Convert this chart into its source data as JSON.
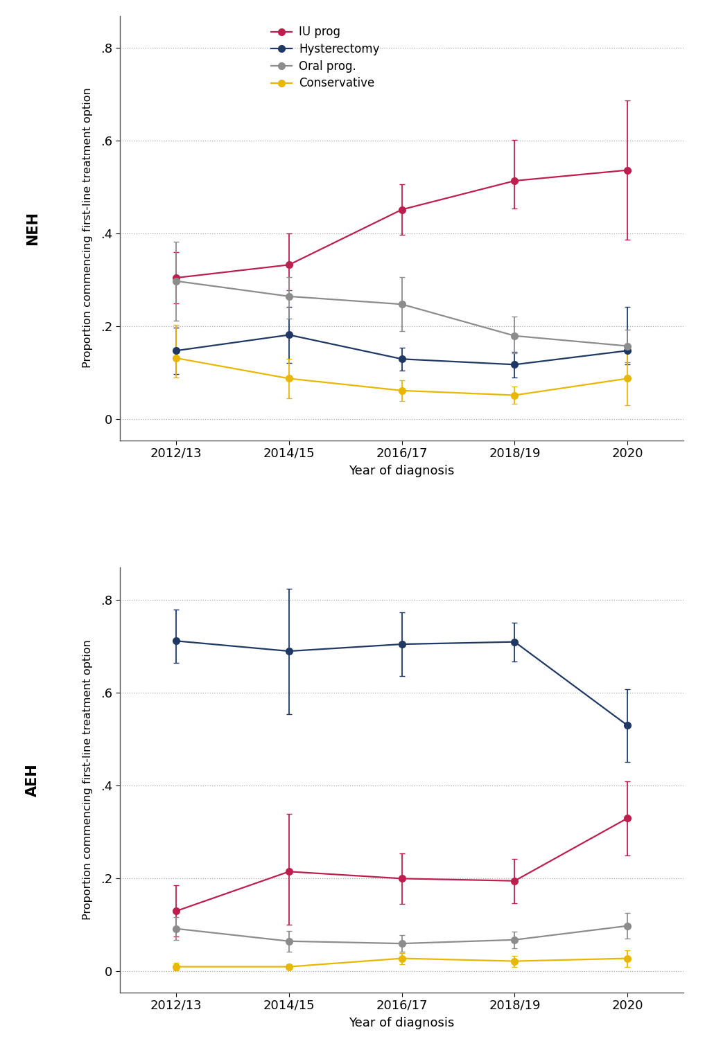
{
  "x_labels": [
    "2012/13",
    "2014/15",
    "2016/17",
    "2018/19",
    "2020"
  ],
  "x_values": [
    0,
    1,
    2,
    3,
    4
  ],
  "neh": {
    "IU_prog": {
      "y": [
        0.305,
        0.333,
        0.452,
        0.514,
        0.537
      ],
      "yerr_lo": [
        0.055,
        0.055,
        0.055,
        0.06,
        0.15
      ],
      "yerr_hi": [
        0.055,
        0.068,
        0.055,
        0.088,
        0.15
      ],
      "color": "#BE1E4E",
      "label": "IU prog"
    },
    "Hysterectomy": {
      "y": [
        0.148,
        0.182,
        0.13,
        0.118,
        0.148
      ],
      "yerr_lo": [
        0.05,
        0.06,
        0.025,
        0.028,
        0.03
      ],
      "yerr_hi": [
        0.05,
        0.06,
        0.025,
        0.028,
        0.095
      ],
      "color": "#1F3864",
      "label": "Hysterectomy"
    },
    "Oral_prog": {
      "y": [
        0.298,
        0.265,
        0.248,
        0.18,
        0.158
      ],
      "yerr_lo": [
        0.085,
        0.048,
        0.058,
        0.038,
        0.035
      ],
      "yerr_hi": [
        0.085,
        0.042,
        0.058,
        0.042,
        0.035
      ],
      "color": "#8C8C8C",
      "label": "Oral prog."
    },
    "Conservative": {
      "y": [
        0.132,
        0.088,
        0.062,
        0.052,
        0.088
      ],
      "yerr_lo": [
        0.042,
        0.042,
        0.022,
        0.018,
        0.058
      ],
      "yerr_hi": [
        0.072,
        0.042,
        0.022,
        0.018,
        0.058
      ],
      "color": "#E8B800",
      "label": "Conservative"
    }
  },
  "aeh": {
    "IU_prog": {
      "y": [
        0.13,
        0.215,
        0.2,
        0.195,
        0.33
      ],
      "yerr_lo": [
        0.055,
        0.115,
        0.055,
        0.048,
        0.08
      ],
      "yerr_hi": [
        0.055,
        0.125,
        0.055,
        0.048,
        0.08
      ],
      "color": "#BE1E4E",
      "label": "IU prog"
    },
    "Hysterectomy": {
      "y": [
        0.712,
        0.69,
        0.705,
        0.71,
        0.53
      ],
      "yerr_lo": [
        0.048,
        0.135,
        0.068,
        0.042,
        0.078
      ],
      "yerr_hi": [
        0.068,
        0.135,
        0.068,
        0.042,
        0.078
      ],
      "color": "#1F3864",
      "label": "Hysterectomy"
    },
    "Oral_prog": {
      "y": [
        0.092,
        0.065,
        0.06,
        0.068,
        0.098
      ],
      "yerr_lo": [
        0.025,
        0.022,
        0.018,
        0.018,
        0.028
      ],
      "yerr_hi": [
        0.025,
        0.022,
        0.018,
        0.018,
        0.028
      ],
      "color": "#8C8C8C",
      "label": "Oral prog."
    },
    "Conservative": {
      "y": [
        0.01,
        0.01,
        0.028,
        0.022,
        0.028
      ],
      "yerr_lo": [
        0.008,
        0.005,
        0.012,
        0.012,
        0.018
      ],
      "yerr_hi": [
        0.008,
        0.005,
        0.012,
        0.012,
        0.018
      ],
      "color": "#E8B800",
      "label": "Conservative"
    }
  },
  "ylabel": "Proportion commencing first-line treatment option",
  "xlabel": "Year of diagnosis",
  "yticks": [
    0.0,
    0.2,
    0.4,
    0.6,
    0.8
  ],
  "ytick_labels": [
    "0",
    ".2",
    ".4",
    ".6",
    ".8"
  ],
  "ylim": [
    -0.045,
    0.87
  ],
  "neh_label": "NEH",
  "aeh_label": "AEH",
  "background_color": "#ffffff",
  "grid_color": "#aaaaaa",
  "marker_size": 7,
  "line_width": 1.6,
  "cap_size": 3,
  "elinewidth": 1.3
}
